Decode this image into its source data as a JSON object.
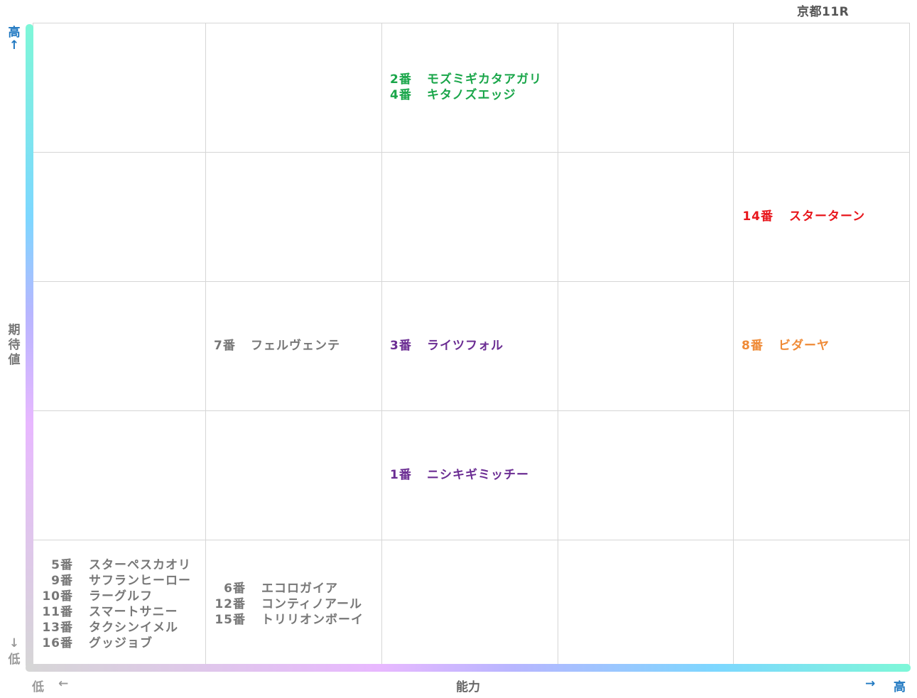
{
  "title": "京都11R",
  "axes": {
    "y_label": "期待値",
    "y_high": "高",
    "y_high_arrow": "↑",
    "y_low": "低",
    "y_low_arrow": "↓",
    "x_label": "能力",
    "x_low": "低",
    "x_low_arrow": "←",
    "x_high": "高",
    "x_high_arrow": "→"
  },
  "colors": {
    "green": "#1aa64a",
    "red": "#e8161c",
    "orange": "#ef8a36",
    "purple": "#6b2d93",
    "gray": "#777777",
    "arrow_blue": "#1f78c1"
  },
  "chart_data": {
    "type": "table",
    "columns": 5,
    "rows": 5,
    "cells": [
      {
        "col": 3,
        "row": 1,
        "color": "green",
        "entries": [
          {
            "num": "2番",
            "name": "モズミギカタアガリ"
          },
          {
            "num": "4番",
            "name": "キタノズエッジ"
          }
        ]
      },
      {
        "col": 5,
        "row": 2,
        "color": "red",
        "entries": [
          {
            "num": "14番",
            "name": "スターターン"
          }
        ]
      },
      {
        "col": 2,
        "row": 3,
        "color": "gray",
        "entries": [
          {
            "num": "7番",
            "name": "フェルヴェンテ"
          }
        ]
      },
      {
        "col": 3,
        "row": 3,
        "color": "purple",
        "entries": [
          {
            "num": "3番",
            "name": "ライツフォル"
          }
        ]
      },
      {
        "col": 5,
        "row": 3,
        "color": "orange",
        "entries": [
          {
            "num": "8番",
            "name": "ビダーヤ"
          }
        ]
      },
      {
        "col": 3,
        "row": 4,
        "color": "purple",
        "entries": [
          {
            "num": "1番",
            "name": "ニシキギミッチー"
          }
        ]
      },
      {
        "col": 1,
        "row": 5,
        "color": "gray",
        "entries": [
          {
            "num": "5番",
            "name": "スターペスカオリ"
          },
          {
            "num": "9番",
            "name": "サフランヒーロー"
          },
          {
            "num": "10番",
            "name": "ラーグルフ"
          },
          {
            "num": "11番",
            "name": "スマートサニー"
          },
          {
            "num": "13番",
            "name": "タクシンイメル"
          },
          {
            "num": "16番",
            "name": "グッジョブ"
          }
        ]
      },
      {
        "col": 2,
        "row": 5,
        "color": "gray",
        "entries": [
          {
            "num": "6番",
            "name": "エコロガイア"
          },
          {
            "num": "12番",
            "name": "コンティノアール"
          },
          {
            "num": "15番",
            "name": "トリリオンボーイ"
          }
        ]
      }
    ]
  }
}
